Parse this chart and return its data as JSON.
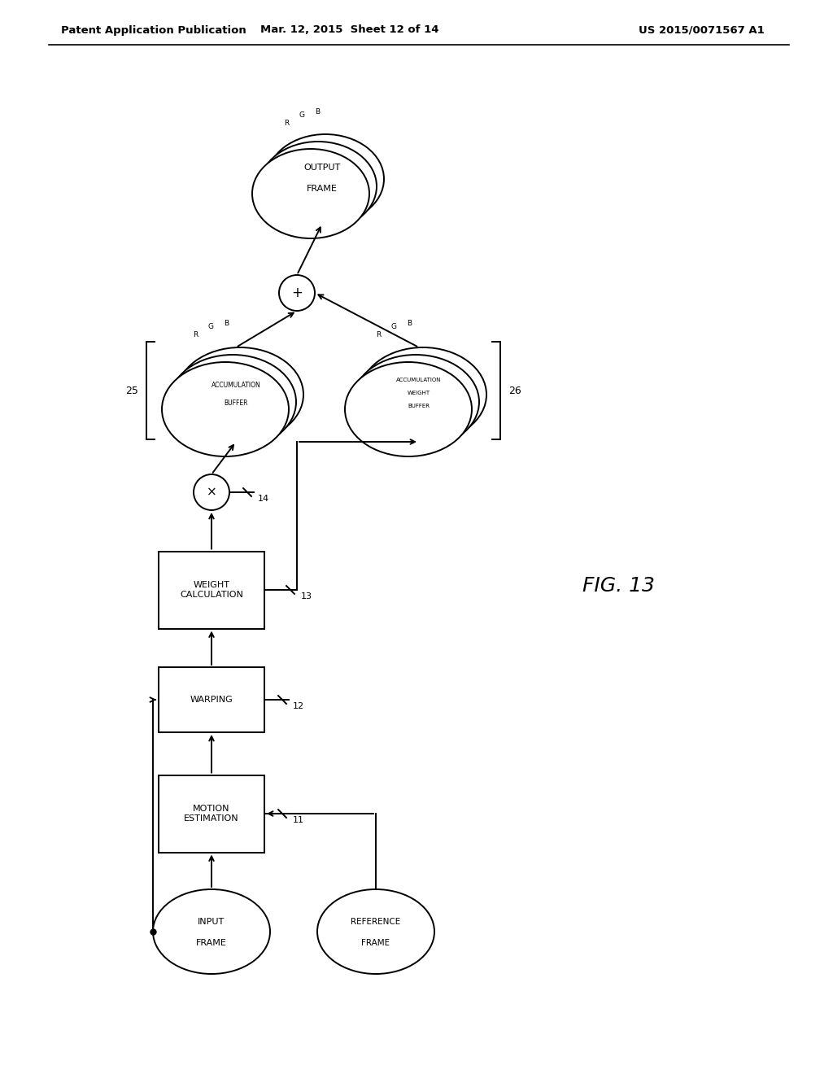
{
  "title_left": "Patent Application Publication",
  "title_mid": "Mar. 12, 2015  Sheet 12 of 14",
  "title_right": "US 2015/0071567 A1",
  "fig_label": "FIG. 13",
  "background": "#ffffff",
  "line_color": "#000000"
}
